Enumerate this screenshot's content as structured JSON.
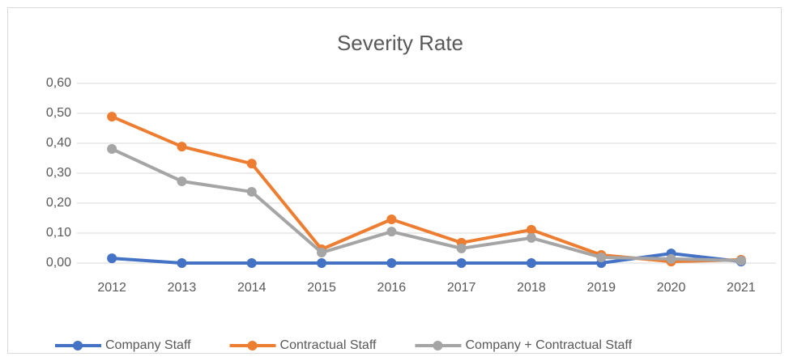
{
  "chart_data": {
    "type": "line",
    "title": "Severity Rate",
    "categories": [
      "2012",
      "2013",
      "2014",
      "2015",
      "2016",
      "2017",
      "2018",
      "2019",
      "2020",
      "2021"
    ],
    "series": [
      {
        "name": "Company Staff",
        "color": "#4472c4",
        "values": [
          0.016,
          0,
          0,
          0,
          0,
          0,
          0,
          0,
          0.032,
          0.005
        ]
      },
      {
        "name": "Contractual Staff",
        "color": "#ed7d31",
        "values": [
          0.489,
          0.389,
          0.332,
          0.046,
          0.146,
          0.068,
          0.111,
          0.027,
          0.005,
          0.011
        ]
      },
      {
        "name": "Company + Contractual Staff",
        "color": "#a5a5a5",
        "values": [
          0.381,
          0.273,
          0.238,
          0.035,
          0.105,
          0.049,
          0.084,
          0.019,
          0.014,
          0.008
        ]
      }
    ],
    "ylim": [
      0,
      0.6
    ],
    "yticks": [
      {
        "value": 0,
        "label": "0,00"
      },
      {
        "value": 0.1,
        "label": "0,10"
      },
      {
        "value": 0.2,
        "label": "0,20"
      },
      {
        "value": 0.3,
        "label": "0,30"
      },
      {
        "value": 0.4,
        "label": "0,40"
      },
      {
        "value": 0.5,
        "label": "0,50"
      },
      {
        "value": 0.6,
        "label": "0,60"
      }
    ],
    "grid": true,
    "legend": "bottom"
  }
}
